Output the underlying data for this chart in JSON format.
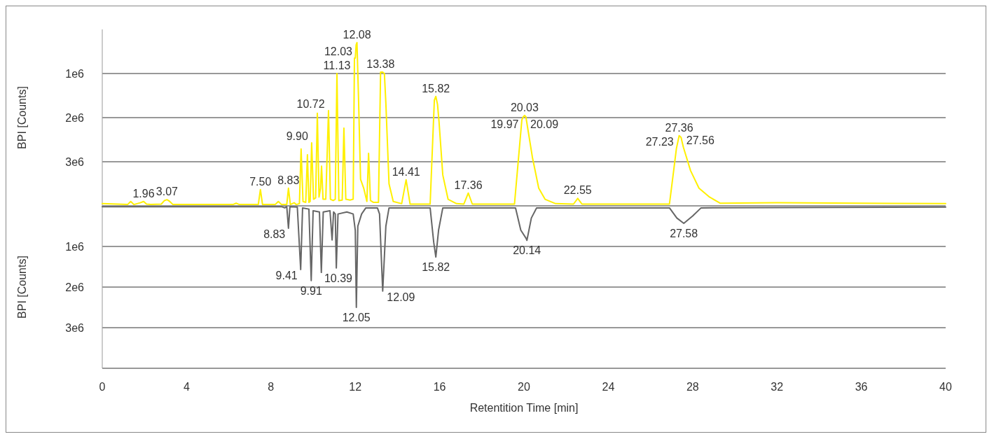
{
  "chart_data": [
    {
      "type": "line",
      "ylabel": "BPI [Counts]",
      "xlim": [
        0,
        40
      ],
      "ylim": [
        4000000,
        0
      ],
      "yticks": [
        {
          "value": 1000000,
          "label": "1e6"
        },
        {
          "value": 2000000,
          "label": "2e6"
        },
        {
          "value": 3000000,
          "label": "3e6"
        },
        {
          "value": 4000000,
          "label": null
        }
      ],
      "grid": "y",
      "tick_labels": "y",
      "series": [
        {
          "color": "#fff000",
          "x": [
            0,
            1.2,
            1.35,
            1.5,
            1.8,
            1.96,
            2.1,
            2.3,
            2.8,
            2.95,
            3.07,
            3.2,
            3.35,
            6.2,
            6.35,
            6.5,
            7.4,
            7.5,
            7.6,
            8.2,
            8.35,
            8.5,
            8.75,
            8.83,
            8.92,
            9.1,
            9.2,
            9.35,
            9.43,
            9.52,
            9.65,
            9.73,
            9.8,
            9.86,
            9.93,
            10.02,
            10.12,
            10.2,
            10.28,
            10.35,
            10.4,
            10.47,
            10.6,
            10.73,
            10.82,
            10.95,
            11.05,
            11.13,
            11.22,
            11.38,
            11.46,
            11.55,
            11.75,
            11.9,
            11.96,
            12.0,
            12.04,
            12.08,
            12.15,
            12.25,
            12.4,
            12.55,
            12.63,
            12.72,
            12.85,
            13.1,
            13.2,
            13.3,
            13.38,
            13.45,
            13.6,
            13.8,
            14.2,
            14.41,
            14.6,
            15.55,
            15.75,
            15.82,
            15.9,
            15.97,
            16.15,
            16.4,
            16.8,
            17.15,
            17.36,
            17.55,
            19.55,
            19.9,
            19.97,
            20.03,
            20.09,
            20.4,
            20.7,
            21.0,
            21.5,
            22.35,
            22.55,
            22.75,
            26.9,
            27.1,
            27.23,
            27.36,
            27.45,
            27.56,
            27.9,
            28.3,
            28.8,
            29.3,
            32,
            36,
            40
          ],
          "values": [
            3950000,
            3970000,
            3900000,
            3970000,
            3930000,
            3900000,
            3960000,
            3970000,
            3960000,
            3880000,
            3860000,
            3900000,
            3970000,
            3970000,
            3940000,
            3970000,
            3970000,
            3630000,
            3970000,
            3970000,
            3900000,
            3970000,
            3970000,
            3600000,
            3970000,
            3930000,
            3970000,
            3950000,
            2710000,
            3900000,
            3920000,
            2840000,
            3920000,
            3900000,
            2570000,
            3850000,
            3820000,
            1900000,
            3800000,
            3600000,
            3100000,
            3850000,
            3850000,
            1840000,
            3850000,
            3880000,
            3850000,
            1000000,
            3880000,
            3870000,
            2240000,
            3850000,
            3870000,
            3850000,
            650000,
            650000,
            350000,
            300000,
            1500000,
            3400000,
            3600000,
            3900000,
            2810000,
            3880000,
            3920000,
            3920000,
            970000,
            970000,
            1000000,
            1670000,
            3500000,
            3900000,
            3950000,
            3410000,
            3960000,
            3960000,
            1600000,
            1520000,
            1700000,
            2080000,
            3300000,
            3850000,
            3950000,
            3960000,
            3710000,
            3960000,
            3960000,
            2050000,
            1980000,
            1950000,
            1980000,
            2900000,
            3600000,
            3850000,
            3950000,
            3960000,
            3830000,
            3960000,
            3960000,
            3200000,
            2700000,
            2410000,
            2450000,
            2670000,
            3200000,
            3600000,
            3800000,
            3940000,
            3930000,
            3940000,
            3950000
          ]
        }
      ],
      "annotations": [
        {
          "text": "1.96",
          "x": 1.96,
          "y": 3900000
        },
        {
          "text": "3.07",
          "x": 3.07,
          "y": 3860000
        },
        {
          "text": "7.50",
          "x": 7.5,
          "y": 3630000
        },
        {
          "text": "8.83",
          "x": 8.83,
          "y": 3600000
        },
        {
          "text": "9.90",
          "x": 9.86,
          "y": 2570000
        },
        {
          "text": "10.72",
          "x": 10.65,
          "y": 1840000
        },
        {
          "text": "11.13",
          "x": 11.13,
          "y": 1000000
        },
        {
          "text": "12.03",
          "x": 11.96,
          "y": 650000
        },
        {
          "text": "12.08",
          "x": 12.08,
          "y": 300000
        },
        {
          "text": "13.38",
          "x": 13.2,
          "y": 970000
        },
        {
          "text": "14.41",
          "x": 14.41,
          "y": 3410000
        },
        {
          "text": "15.82",
          "x": 15.82,
          "y": 1520000
        },
        {
          "text": "17.36",
          "x": 17.36,
          "y": 3710000
        },
        {
          "text": "19.97",
          "x": 19.85,
          "y": 2300000
        },
        {
          "text": "20.03",
          "x": 20.03,
          "y": 1950000
        },
        {
          "text": "20.09",
          "x": 20.2,
          "y": 2300000
        },
        {
          "text": "22.55",
          "x": 22.55,
          "y": 3830000
        },
        {
          "text": "27.23",
          "x": 27.2,
          "y": 2700000
        },
        {
          "text": "27.36",
          "x": 27.36,
          "y": 2410000
        },
        {
          "text": "27.56",
          "x": 27.6,
          "y": 2670000
        }
      ]
    },
    {
      "type": "line",
      "ylabel": "BPI [Counts]",
      "xlabel": "Retentition Time [min]",
      "xlim": [
        0,
        40
      ],
      "xticks": [
        0,
        4,
        8,
        12,
        16,
        20,
        24,
        28,
        32,
        36,
        40
      ],
      "ylim": [
        4000000,
        0
      ],
      "yticks": [
        {
          "value": 1000000,
          "label": "1e6"
        },
        {
          "value": 2000000,
          "label": "2e6"
        },
        {
          "value": 3000000,
          "label": "3e6"
        },
        {
          "value": 4000000,
          "label": null
        }
      ],
      "grid": "y",
      "series": [
        {
          "color": "#666666",
          "x": [
            0,
            8.5,
            8.65,
            8.75,
            8.83,
            8.9,
            9.25,
            9.41,
            9.5,
            9.8,
            9.91,
            10.0,
            10.3,
            10.39,
            10.48,
            10.8,
            10.9,
            10.97,
            11.05,
            11.1,
            11.18,
            11.6,
            11.9,
            12.0,
            12.05,
            12.12,
            12.3,
            12.5,
            13.05,
            13.15,
            13.3,
            13.45,
            13.6,
            15.55,
            15.72,
            15.82,
            15.95,
            16.15,
            19.6,
            19.85,
            20.1,
            20.14,
            20.35,
            20.6,
            26.9,
            27.25,
            27.58,
            28.0,
            28.4,
            40
          ],
          "values": [
            20000,
            20000,
            50000,
            20000,
            550000,
            20000,
            30000,
            1570000,
            50000,
            80000,
            1840000,
            120000,
            150000,
            1640000,
            150000,
            120000,
            840000,
            150000,
            200000,
            1530000,
            200000,
            150000,
            200000,
            600000,
            2500000,
            500000,
            200000,
            50000,
            50000,
            200000,
            2100000,
            500000,
            50000,
            50000,
            900000,
            1260000,
            600000,
            50000,
            50000,
            600000,
            800000,
            850000,
            300000,
            50000,
            50000,
            300000,
            430000,
            250000,
            50000,
            30000
          ]
        }
      ],
      "annotations": [
        {
          "text": "8.83",
          "x": 8.78,
          "y": 550000
        },
        {
          "text": "9.41",
          "x": 9.36,
          "y": 1570000
        },
        {
          "text": "9.91",
          "x": 9.91,
          "y": 1840000
        },
        {
          "text": "10.39",
          "x": 10.43,
          "y": 1640000
        },
        {
          "text": "12.05",
          "x": 12.05,
          "y": 2500000
        },
        {
          "text": "12.09",
          "x": 13.4,
          "y": 2100000
        },
        {
          "text": "15.82",
          "x": 15.82,
          "y": 1260000
        },
        {
          "text": "20.14",
          "x": 20.14,
          "y": 850000
        },
        {
          "text": "27.58",
          "x": 27.58,
          "y": 430000
        }
      ]
    }
  ]
}
